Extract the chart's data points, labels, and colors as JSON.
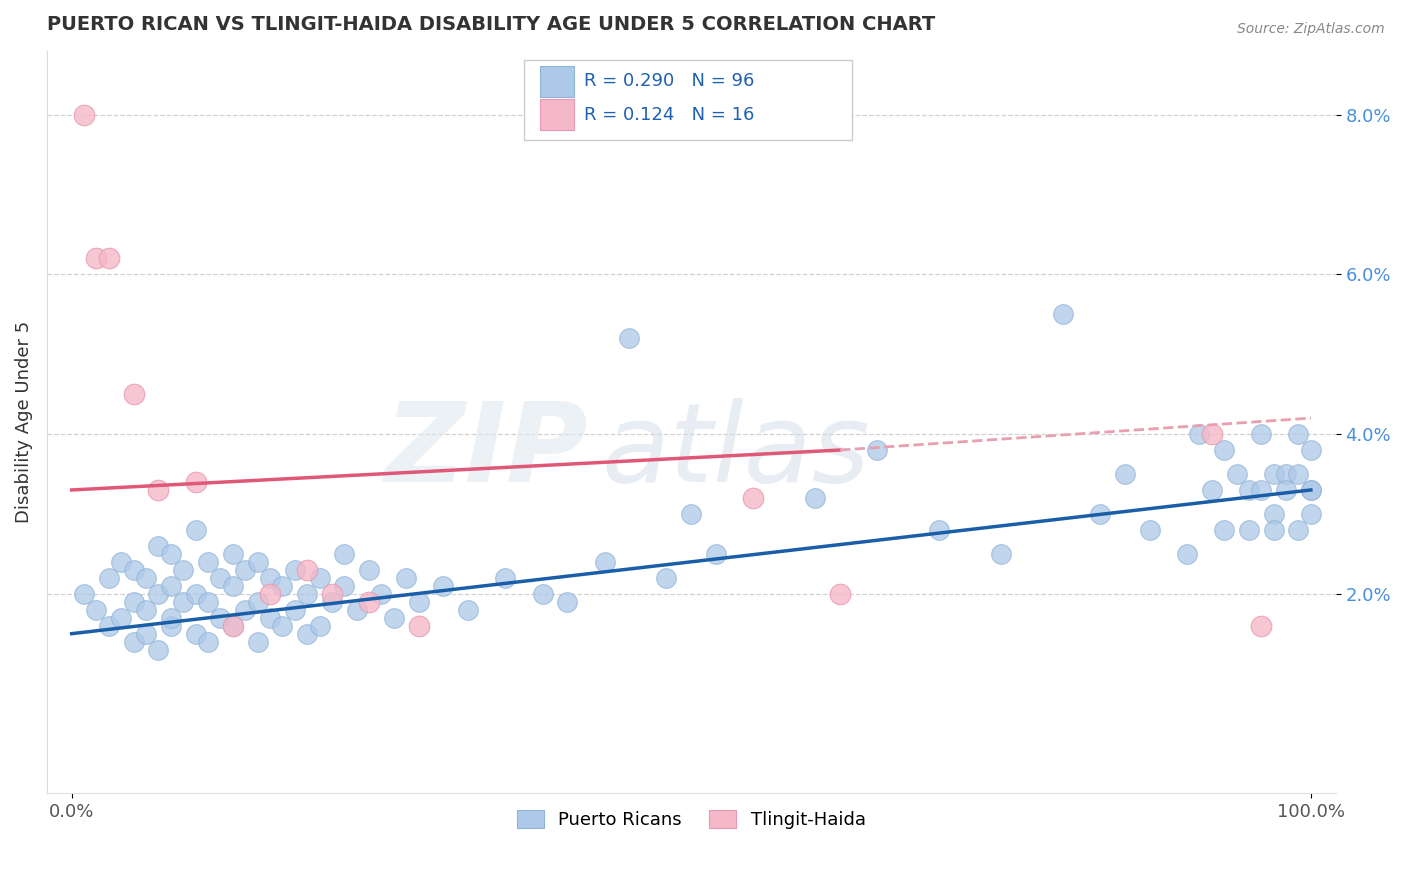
{
  "title": "PUERTO RICAN VS TLINGIT-HAIDA DISABILITY AGE UNDER 5 CORRELATION CHART",
  "source": "Source: ZipAtlas.com",
  "ylabel": "Disability Age Under 5",
  "xlim": [
    -0.02,
    1.02
  ],
  "ylim": [
    -0.005,
    0.088
  ],
  "yticks": [
    0.02,
    0.04,
    0.06,
    0.08
  ],
  "ytick_labels": [
    "2.0%",
    "4.0%",
    "6.0%",
    "8.0%"
  ],
  "R_blue": "0.290",
  "N_blue": "96",
  "R_pink": "0.124",
  "N_pink": "16",
  "blue_color": "#adc8e8",
  "blue_edge_color": "#90b4d8",
  "pink_color": "#f5b8c8",
  "pink_edge_color": "#e898b0",
  "blue_line_color": "#1a5ea8",
  "pink_line_color": "#e05878",
  "pink_dash_color": "#e8a0b0",
  "trendline_blue_x0": 0.0,
  "trendline_blue_y0": 0.015,
  "trendline_blue_x1": 1.0,
  "trendline_blue_y1": 0.033,
  "trendline_pink_solid_x0": 0.0,
  "trendline_pink_solid_y0": 0.033,
  "trendline_pink_solid_x1": 0.62,
  "trendline_pink_solid_y1": 0.038,
  "trendline_pink_dash_x0": 0.62,
  "trendline_pink_dash_y0": 0.038,
  "trendline_pink_dash_x1": 1.0,
  "trendline_pink_dash_y1": 0.042,
  "blue_scatter_x": [
    0.01,
    0.02,
    0.03,
    0.03,
    0.04,
    0.04,
    0.05,
    0.05,
    0.05,
    0.06,
    0.06,
    0.06,
    0.07,
    0.07,
    0.07,
    0.08,
    0.08,
    0.08,
    0.08,
    0.09,
    0.09,
    0.1,
    0.1,
    0.1,
    0.11,
    0.11,
    0.11,
    0.12,
    0.12,
    0.13,
    0.13,
    0.13,
    0.14,
    0.14,
    0.15,
    0.15,
    0.15,
    0.16,
    0.16,
    0.17,
    0.17,
    0.18,
    0.18,
    0.19,
    0.19,
    0.2,
    0.2,
    0.21,
    0.22,
    0.22,
    0.23,
    0.24,
    0.25,
    0.26,
    0.27,
    0.28,
    0.3,
    0.32,
    0.35,
    0.38,
    0.4,
    0.43,
    0.45,
    0.48,
    0.5,
    0.52,
    0.6,
    0.65,
    0.7,
    0.75,
    0.8,
    0.83,
    0.85,
    0.87,
    0.9,
    0.91,
    0.92,
    0.93,
    0.93,
    0.94,
    0.95,
    0.95,
    0.96,
    0.96,
    0.97,
    0.97,
    0.97,
    0.98,
    0.98,
    0.99,
    0.99,
    0.99,
    1.0,
    1.0,
    1.0,
    1.0
  ],
  "blue_scatter_y": [
    0.02,
    0.018,
    0.022,
    0.016,
    0.017,
    0.024,
    0.019,
    0.014,
    0.023,
    0.015,
    0.018,
    0.022,
    0.013,
    0.02,
    0.026,
    0.016,
    0.021,
    0.017,
    0.025,
    0.019,
    0.023,
    0.015,
    0.02,
    0.028,
    0.014,
    0.019,
    0.024,
    0.017,
    0.022,
    0.016,
    0.021,
    0.025,
    0.018,
    0.023,
    0.014,
    0.019,
    0.024,
    0.017,
    0.022,
    0.016,
    0.021,
    0.018,
    0.023,
    0.015,
    0.02,
    0.016,
    0.022,
    0.019,
    0.025,
    0.021,
    0.018,
    0.023,
    0.02,
    0.017,
    0.022,
    0.019,
    0.021,
    0.018,
    0.022,
    0.02,
    0.019,
    0.024,
    0.052,
    0.022,
    0.03,
    0.025,
    0.032,
    0.038,
    0.028,
    0.025,
    0.055,
    0.03,
    0.035,
    0.028,
    0.025,
    0.04,
    0.033,
    0.038,
    0.028,
    0.035,
    0.033,
    0.028,
    0.04,
    0.033,
    0.03,
    0.035,
    0.028,
    0.035,
    0.033,
    0.028,
    0.035,
    0.04,
    0.03,
    0.033,
    0.038,
    0.033
  ],
  "pink_scatter_x": [
    0.01,
    0.02,
    0.03,
    0.05,
    0.07,
    0.1,
    0.13,
    0.16,
    0.19,
    0.21,
    0.24,
    0.28,
    0.55,
    0.62,
    0.92,
    0.96
  ],
  "pink_scatter_y": [
    0.08,
    0.062,
    0.062,
    0.045,
    0.033,
    0.034,
    0.016,
    0.02,
    0.023,
    0.02,
    0.019,
    0.016,
    0.032,
    0.02,
    0.04,
    0.016
  ],
  "watermark_zip": "ZIP",
  "watermark_atlas": "atlas"
}
